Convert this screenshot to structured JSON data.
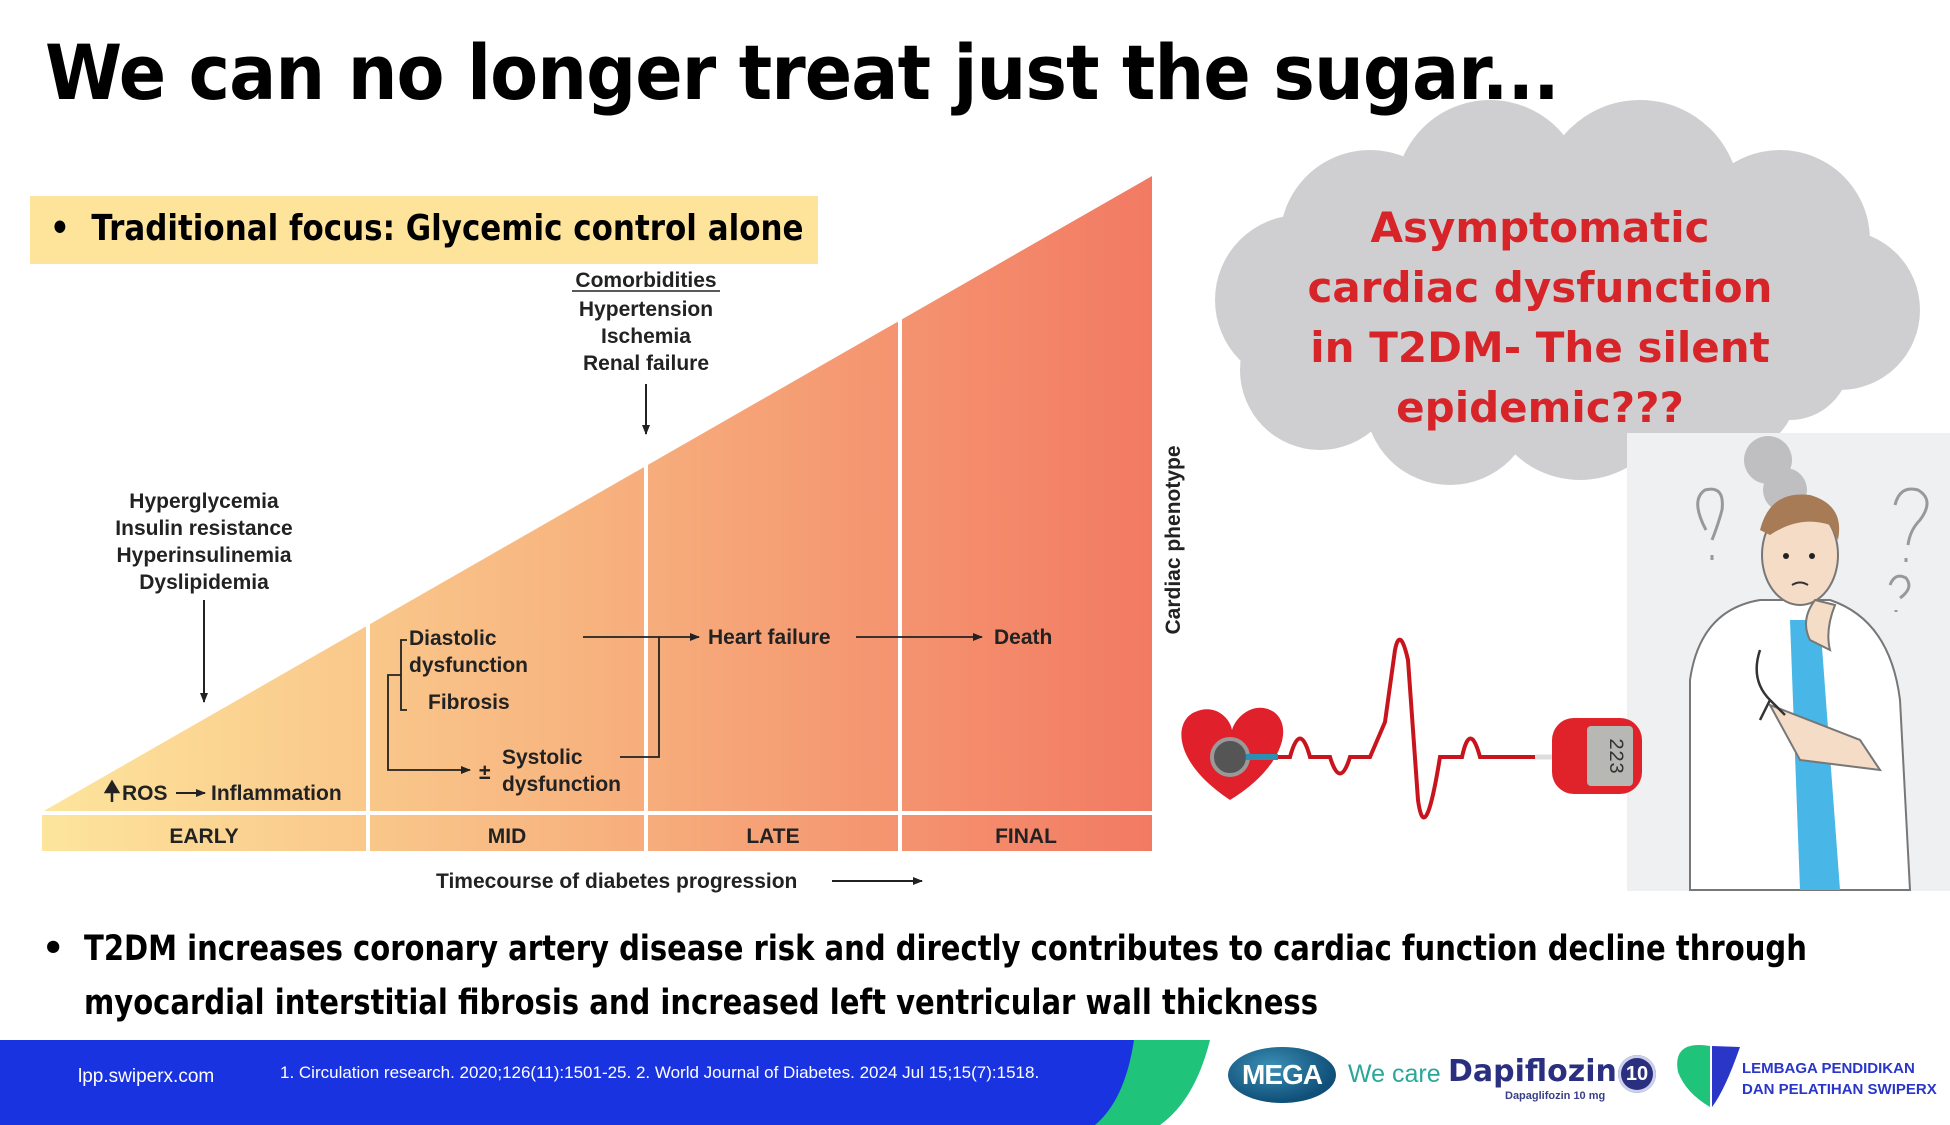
{
  "slide": {
    "title": "We can no longer treat just the sugar...",
    "focus_bullet": "Traditional focus: Glycemic control alone",
    "bullet_char": "•"
  },
  "diagram": {
    "stages": [
      "EARLY",
      "MID",
      "LATE",
      "FINAL"
    ],
    "x_axis_label": "Timecourse of diabetes progression",
    "y_axis_label": "Cardiac phenotype",
    "early_factors": [
      "Hyperglycemia",
      "Insulin resistance",
      "Hyperinsulinemia",
      "Dyslipidemia"
    ],
    "early_effect": "ROS",
    "early_effect_result": "Inflammation",
    "mid_items": {
      "diastolic_line1": "Diastolic",
      "diastolic_line2": "dysfunction",
      "fibrosis": "Fibrosis",
      "plus_minus": "±",
      "systolic_line1": "Systolic",
      "systolic_line2": "dysfunction"
    },
    "comorbidities_heading": "Comorbidities",
    "comorbidities": [
      "Hypertension",
      "Ischemia",
      "Renal failure"
    ],
    "late_outcome": "Heart failure",
    "final_outcome": "Death",
    "gradient_colors": [
      "#fde59c",
      "#f7b27e",
      "#f27a63"
    ]
  },
  "cloud": {
    "lines": [
      "Asymptomatic",
      "cardiac dysfunction",
      "in T2DM- The silent",
      "epidemic???"
    ],
    "text_color": "#d62429",
    "fill_color": "#cfcfd1"
  },
  "illustration": {
    "meter_reading": "223"
  },
  "bottom_bullet": "T2DM increases coronary artery disease risk and directly contributes to cardiac function decline through myocardial interstitial fibrosis and increased left ventricular wall thickness",
  "footer": {
    "url": "lpp.swiperx.com",
    "references": "1. Circulation research. 2020;126(11):1501-25.  2. World Journal of Diabetes. 2024 Jul 15;15(7):1518.",
    "bar_color": "#1a33e0",
    "accent_color": "#1fc37a",
    "logos": {
      "mega": "MEGA",
      "we_care": "We care",
      "product": "Dapiflozin",
      "product_sub": "Dapaglifozin 10 mg",
      "product_dose": "10",
      "lpp_line1": "LEMBAGA PENDIDIKAN",
      "lpp_line2": "DAN PELATIHAN SWIPERX"
    }
  }
}
